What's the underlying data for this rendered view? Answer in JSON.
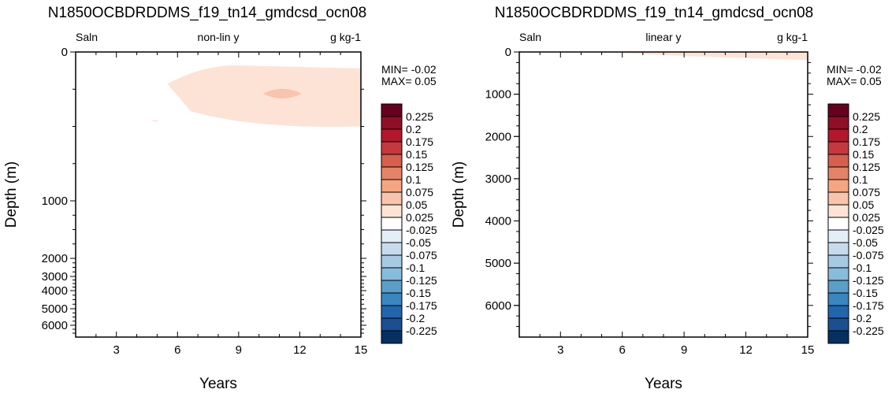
{
  "chart_data": [
    {
      "type": "heatmap",
      "title": "N1850OCBDRDDMS_f19_tn14_gmdcsd_ocn08",
      "variable": "Saln",
      "subtitle": "non-lin y",
      "units": "g kg-1",
      "xlabel": "Years",
      "ylabel": "Depth (m)",
      "xlim": [
        1,
        15
      ],
      "ylim": [
        0,
        6750
      ],
      "y_scale": "non-linear",
      "x_ticks": [
        "3",
        "6",
        "9",
        "12",
        "15"
      ],
      "y_ticks": [
        "0",
        "1000",
        "2000",
        "3000",
        "4000",
        "5000",
        "6000"
      ],
      "min_label": "MIN= -0.02",
      "max_label": "MAX=  0.05",
      "anomaly_regions": [
        {
          "level": "0 to 0.025",
          "color": "#fde3d6",
          "years": [
            5.5,
            15
          ],
          "depth": [
            90,
            500
          ]
        },
        {
          "level": "0.025 to 0.05",
          "color": "#f8c4ab",
          "years": [
            10.2,
            12.1
          ],
          "depth": [
            230,
            330
          ]
        },
        {
          "level": "0 to 0.025",
          "color": "#fde3d6",
          "years": [
            4.7,
            5.1
          ],
          "depth": [
            455,
            470
          ]
        }
      ]
    },
    {
      "type": "heatmap",
      "title": "N1850OCBDRDDMS_f19_tn14_gmdcsd_ocn08",
      "variable": "Saln",
      "subtitle": "linear y",
      "units": "g kg-1",
      "xlabel": "Years",
      "ylabel": "Depth (m)",
      "xlim": [
        1,
        15
      ],
      "ylim": [
        0,
        6750
      ],
      "y_scale": "linear",
      "x_ticks": [
        "3",
        "6",
        "9",
        "12",
        "15"
      ],
      "y_ticks": [
        "0",
        "1000",
        "2000",
        "3000",
        "4000",
        "5000",
        "6000"
      ],
      "min_label": "MIN= -0.02",
      "max_label": "MAX=  0.05",
      "anomaly_regions": [
        {
          "level": "0 to 0.025",
          "color": "#fde3d6",
          "years": [
            6.0,
            15
          ],
          "depth": [
            0,
            190
          ]
        }
      ]
    }
  ],
  "colorbar": {
    "labels": [
      "0.225",
      "0.2",
      "0.175",
      "0.15",
      "0.125",
      "0.1",
      "0.075",
      "0.05",
      "0.025",
      "-0.025",
      "-0.05",
      "-0.075",
      "-0.1",
      "-0.125",
      "-0.15",
      "-0.175",
      "-0.2",
      "-0.225"
    ],
    "colors": [
      "#67001f",
      "#900f26",
      "#b2182b",
      "#c6383f",
      "#d6604d",
      "#e58368",
      "#f4a582",
      "#f8c4ab",
      "#fde3d6",
      "#ffffff",
      "#e3eef6",
      "#c6dbed",
      "#a6cae3",
      "#87bcdc",
      "#5a9ec9",
      "#3a86bf",
      "#2166ac",
      "#1b4f91",
      "#053061"
    ]
  }
}
